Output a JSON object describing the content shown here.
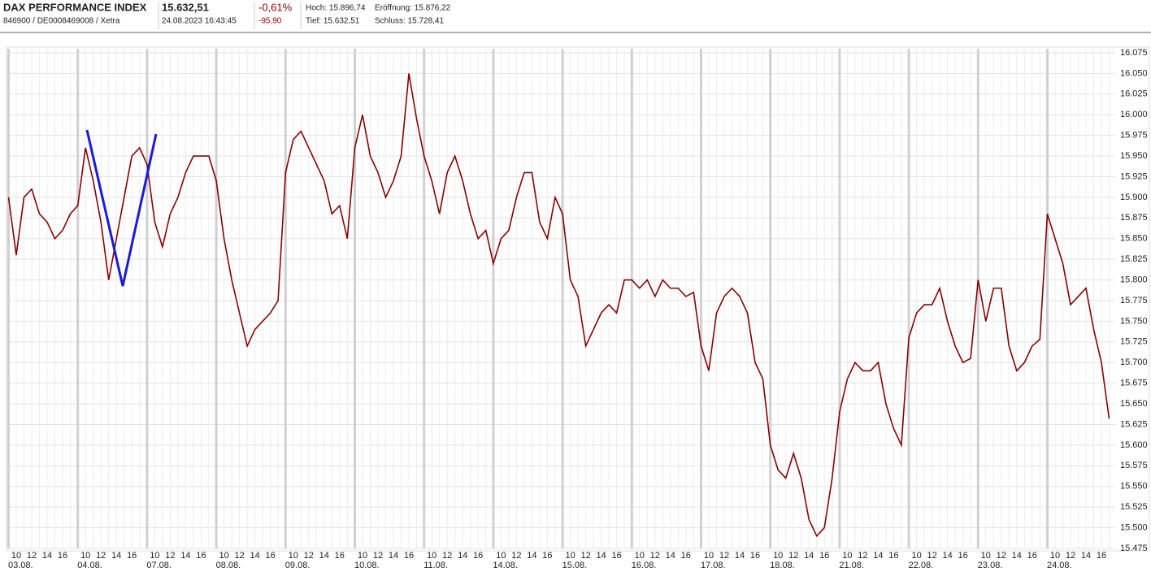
{
  "header": {
    "title": "DAX PERFORMANCE INDEX",
    "subtitle": "846900 / DE0008469008 / Xetra",
    "price": "15.632,51",
    "timestamp": "24.08.2023 16:43:45",
    "change_pct": "-0,61%",
    "change_abs": "-95,90",
    "high": "Hoch: 15.896,74",
    "open": "Eröffnung: 15.876,22",
    "low": "Tief: 15.632,51",
    "close": "Schluss: 15.728,41"
  },
  "chart_data": {
    "type": "line",
    "categories": [
      "03.08.",
      "04.08.",
      "07.08.",
      "08.08.",
      "09.08.",
      "10.08.",
      "11.08.",
      "14.08.",
      "15.08.",
      "16.08.",
      "17.08.",
      "18.08.",
      "21.08.",
      "22.08.",
      "23.08.",
      "24.08."
    ],
    "hour_ticks": [
      10,
      12,
      14,
      16
    ],
    "hours": [
      9,
      10,
      11,
      12,
      13,
      14,
      15,
      16,
      17
    ],
    "series": [
      {
        "color": "#8b0000",
        "values": [
          [
            15900,
            15830,
            15900,
            15910,
            15880,
            15870,
            15850,
            15860,
            15880
          ],
          [
            15890,
            15960,
            15920,
            15870,
            15800,
            15850,
            15900,
            15950,
            15960
          ],
          [
            15940,
            15870,
            15840,
            15880,
            15900,
            15930,
            15950,
            15950,
            15950
          ],
          [
            15920,
            15850,
            15800,
            15760,
            15720,
            15740,
            15750,
            15760,
            15775
          ],
          [
            15930,
            15970,
            15980,
            15960,
            15940,
            15920,
            15880,
            15890,
            15850
          ],
          [
            15960,
            16000,
            15950,
            15930,
            15900,
            15920,
            15950,
            16050,
            15995
          ],
          [
            15950,
            15920,
            15880,
            15930,
            15950,
            15920,
            15880,
            15850,
            15860
          ],
          [
            15820,
            15850,
            15860,
            15900,
            15930,
            15930,
            15870,
            15850,
            15900
          ],
          [
            15880,
            15800,
            15780,
            15720,
            15740,
            15760,
            15770,
            15760,
            15800
          ],
          [
            15800,
            15790,
            15800,
            15780,
            15800,
            15790,
            15790,
            15780,
            15785
          ],
          [
            15720,
            15690,
            15760,
            15780,
            15790,
            15780,
            15760,
            15700,
            15680
          ],
          [
            15600,
            15570,
            15560,
            15590,
            15560,
            15510,
            15490,
            15500,
            15560
          ],
          [
            15640,
            15680,
            15700,
            15690,
            15690,
            15700,
            15650,
            15620,
            15600
          ],
          [
            15730,
            15760,
            15770,
            15770,
            15790,
            15750,
            15720,
            15700,
            15705
          ],
          [
            15800,
            15750,
            15790,
            15790,
            15720,
            15690,
            15700,
            15720,
            15728
          ],
          [
            15880,
            15850,
            15820,
            15770,
            15780,
            15790,
            15740,
            15700,
            15632
          ]
        ]
      }
    ],
    "ylim": [
      15475,
      16075
    ],
    "yticks": [
      {
        "value": 15475,
        "label": "15.475"
      },
      {
        "value": 15500,
        "label": "15.500"
      },
      {
        "value": 15525,
        "label": "15.525"
      },
      {
        "value": 15550,
        "label": "15.550"
      },
      {
        "value": 15575,
        "label": "15.575"
      },
      {
        "value": 15600,
        "label": "15.600"
      },
      {
        "value": 15625,
        "label": "15.625"
      },
      {
        "value": 15650,
        "label": "15.650"
      },
      {
        "value": 15675,
        "label": "15.675"
      },
      {
        "value": 15700,
        "label": "15.700"
      },
      {
        "value": 15725,
        "label": "15.725"
      },
      {
        "value": 15750,
        "label": "15.750"
      },
      {
        "value": 15775,
        "label": "15.775"
      },
      {
        "value": 15800,
        "label": "15.800"
      },
      {
        "value": 15825,
        "label": "15.825"
      },
      {
        "value": 15850,
        "label": "15.850"
      },
      {
        "value": 15875,
        "label": "15.875"
      },
      {
        "value": 15900,
        "label": "15.900"
      },
      {
        "value": 15925,
        "label": "15.925"
      },
      {
        "value": 15950,
        "label": "15.950"
      },
      {
        "value": 15975,
        "label": "15.975"
      },
      {
        "value": 16000,
        "label": "16.000"
      },
      {
        "value": 16025,
        "label": "16.025"
      },
      {
        "value": 16050,
        "label": "16.050"
      },
      {
        "value": 16075,
        "label": "16.075"
      }
    ],
    "grid": true
  }
}
